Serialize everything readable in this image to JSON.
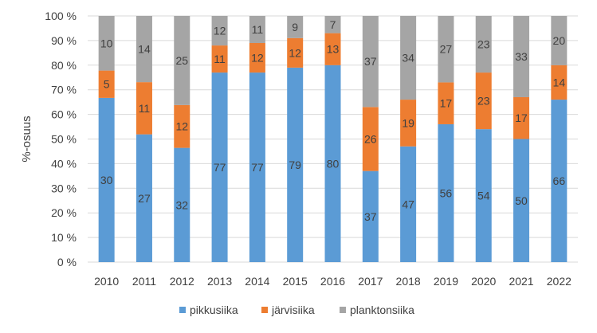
{
  "chart_data": {
    "type": "bar",
    "stacked": true,
    "title": "",
    "xlabel": "",
    "ylabel": "%-osuus",
    "ylim": [
      0,
      100
    ],
    "y_ticks": [
      "0 %",
      "10 %",
      "20 %",
      "30 %",
      "40 %",
      "50 %",
      "60 %",
      "70 %",
      "80 %",
      "90 %",
      "100 %"
    ],
    "grid": true,
    "legend_position": "bottom",
    "categories": [
      "2010",
      "2011",
      "2012",
      "2013",
      "2014",
      "2015",
      "2016",
      "2017",
      "2018",
      "2019",
      "2020",
      "2021",
      "2022"
    ],
    "series": [
      {
        "name": "pikkusiika",
        "color": "#5b9bd5",
        "values": [
          30,
          27,
          32,
          77,
          77,
          79,
          80,
          37,
          47,
          56,
          54,
          50,
          66
        ],
        "shares": [
          66.7,
          51.9,
          46.4,
          77,
          77,
          79,
          80,
          37,
          47,
          56,
          54,
          50,
          66
        ]
      },
      {
        "name": "järvisiika",
        "color": "#ed7d31",
        "values": [
          5,
          11,
          12,
          11,
          12,
          12,
          13,
          26,
          19,
          17,
          23,
          17,
          14
        ],
        "shares": [
          11.1,
          21.2,
          17.4,
          11,
          12,
          12,
          13,
          26,
          19,
          17,
          23,
          17,
          14
        ]
      },
      {
        "name": "planktonsiika",
        "color": "#a5a5a5",
        "values": [
          10,
          14,
          25,
          12,
          11,
          9,
          7,
          37,
          34,
          27,
          23,
          33,
          20
        ],
        "shares": [
          22.2,
          26.9,
          36.2,
          12,
          11,
          9,
          7,
          37,
          34,
          27,
          23,
          33,
          20
        ]
      }
    ]
  }
}
